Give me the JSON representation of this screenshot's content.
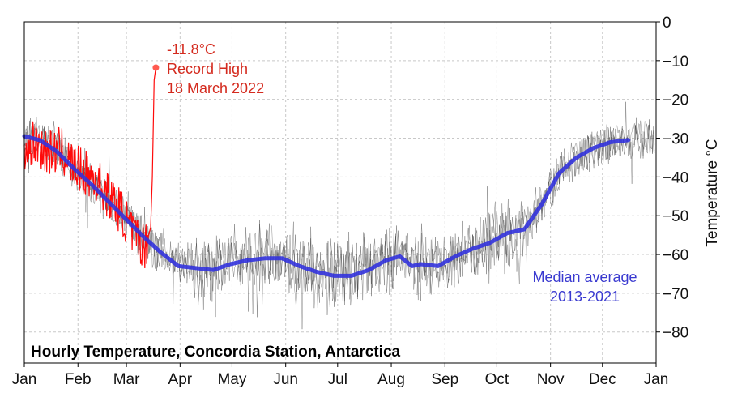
{
  "chart_data": {
    "type": "line",
    "title": "Hourly Temperature, Concordia Station, Antarctica",
    "ylabel": "Temperature °C",
    "xlabel": "",
    "months": [
      "Jan",
      "Feb",
      "Mar",
      "Apr",
      "May",
      "Jun",
      "Jul",
      "Aug",
      "Sep",
      "Oct",
      "Nov",
      "Dec",
      "Jan"
    ],
    "ylim": [
      -88,
      0
    ],
    "yticks": [
      0,
      -10,
      -20,
      -30,
      -40,
      -50,
      -60,
      -70,
      -80
    ],
    "grid": true,
    "colors": {
      "median": "#3333dd",
      "year2022": "#ff0a0a",
      "hourly_history": "#2b2b2b",
      "record_text": "#d42a1e",
      "median_text": "#3a3ad0"
    },
    "series": [
      {
        "name": "Median average 2013-2021",
        "x": [
          1,
          10,
          20,
          30,
          40,
          50,
          60,
          70,
          80,
          90,
          100,
          110,
          120,
          130,
          140,
          150,
          160,
          170,
          180,
          190,
          200,
          210,
          218,
          225,
          230,
          240,
          250,
          260,
          270,
          280,
          290,
          300,
          310,
          320,
          330,
          340,
          350
        ],
        "y": [
          -29.5,
          -30.5,
          -33.5,
          -38,
          -42,
          -46.5,
          -51,
          -55.5,
          -59.5,
          -63,
          -63.5,
          -64,
          -62.5,
          -61.5,
          -61,
          -61,
          -63,
          -64.5,
          -65.5,
          -65.5,
          -64,
          -61.5,
          -60.5,
          -63,
          -62.5,
          -63,
          -60.5,
          -58.5,
          -57,
          -54.5,
          -53.5,
          -47,
          -39,
          -35,
          -32.5,
          -31,
          -30.5
        ]
      },
      {
        "name": "",
        "x": [
          1,
          8,
          15,
          22,
          29,
          36,
          43,
          50,
          57,
          64,
          71,
          74,
          75,
          76,
          77
        ],
        "y": [
          -33,
          -31,
          -34,
          -33,
          -37,
          -39,
          -41,
          -45,
          -49,
          -55,
          -58,
          -53,
          -40,
          -15,
          -11.8
        ]
      }
    ],
    "annotations": [
      {
        "text": [
          "-11.8°C",
          "Record High",
          "18 March 2022"
        ],
        "x": 77,
        "y": -11.8
      },
      {
        "text": [
          "Median average",
          "2013-2021"
        ]
      }
    ]
  }
}
